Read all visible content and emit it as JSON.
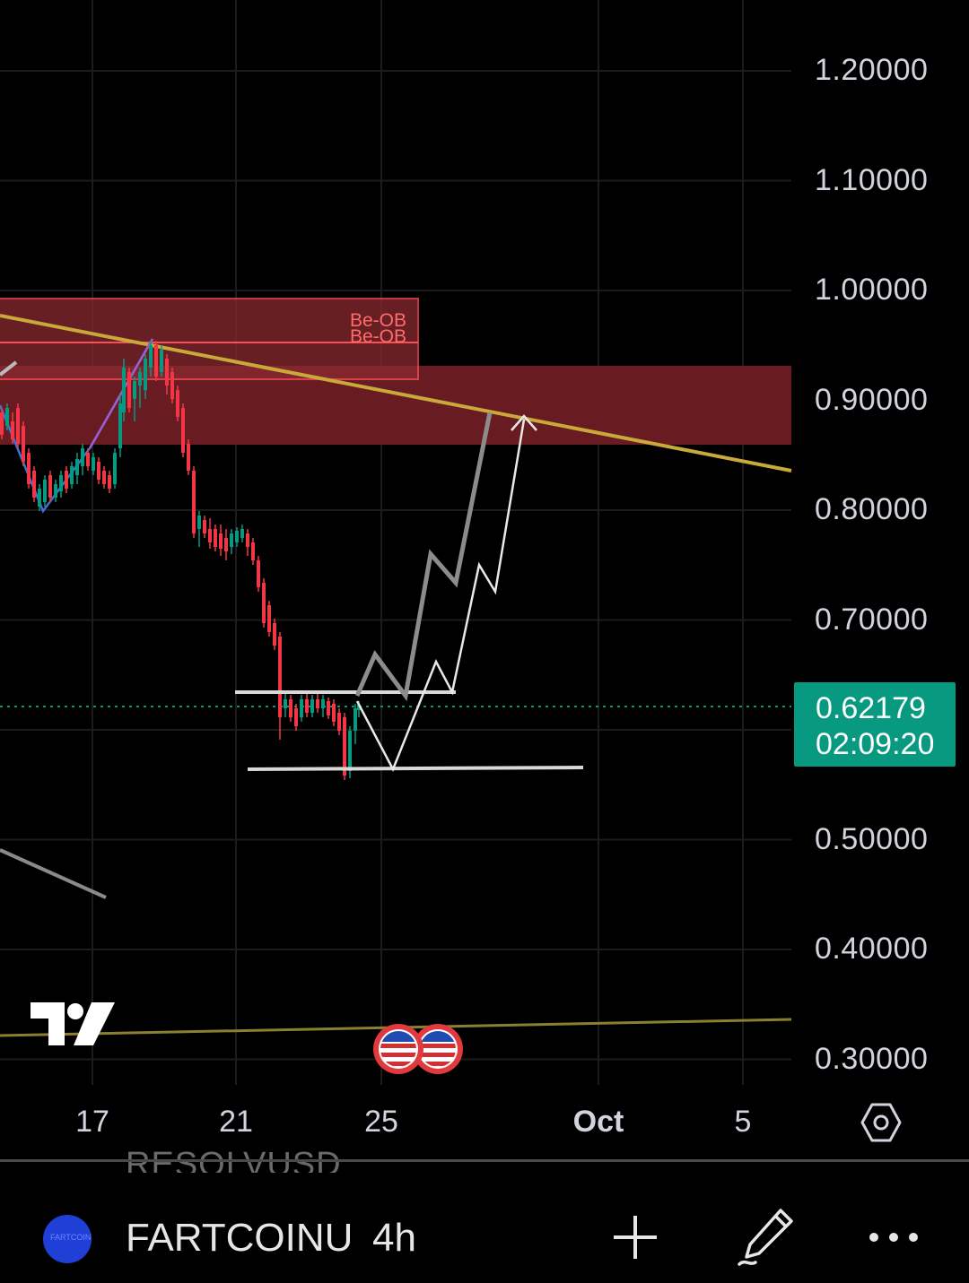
{
  "chart": {
    "price_axis_labels": [
      "1.20000",
      "1.10000",
      "1.00000",
      "0.90000",
      "0.80000",
      "0.70000",
      "0.50000",
      "0.40000",
      "0.30000"
    ],
    "date_axis_labels": [
      "17",
      "21",
      "25",
      "Oct",
      "5"
    ],
    "current_price": "0.62179",
    "countdown": "02:09:20",
    "zone_labels": [
      "Be-OB",
      "Be-OB"
    ],
    "colors": {
      "bullish": "#089981",
      "bearish": "#f23645",
      "trendline": "#c9a93a",
      "zone": "#7a1e24",
      "drawing": "#e0e0e0"
    }
  },
  "chart_data": {
    "type": "candlestick",
    "interval": "4h",
    "y_axis_ticks": [
      1.2,
      1.1,
      1.0,
      0.9,
      0.8,
      0.7,
      0.5,
      0.4,
      0.3
    ],
    "ylim": [
      0.28,
      1.25
    ],
    "x_ticks": [
      "17",
      "21",
      "25",
      "Oct",
      "5"
    ],
    "last_price": 0.62179,
    "zones": [
      {
        "label": "Be-OB",
        "from": 0.93,
        "to": 0.99
      },
      {
        "label": "",
        "from": 0.86,
        "to": 0.93
      }
    ],
    "projection_levels": [
      0.63,
      0.565
    ]
  },
  "bottom_bar": {
    "symbol": "FARTCOINU",
    "interval": "4h",
    "ghost_text": "RESOLVUSD",
    "avatar_text": "FARTCOIN"
  },
  "icons": {
    "settings": "settings-hexagon-icon",
    "add": "plus-icon",
    "draw": "pencil-icon",
    "more": "more-dots-icon",
    "logo": "tradingview-logo",
    "events": "us-flag-event-icon"
  }
}
